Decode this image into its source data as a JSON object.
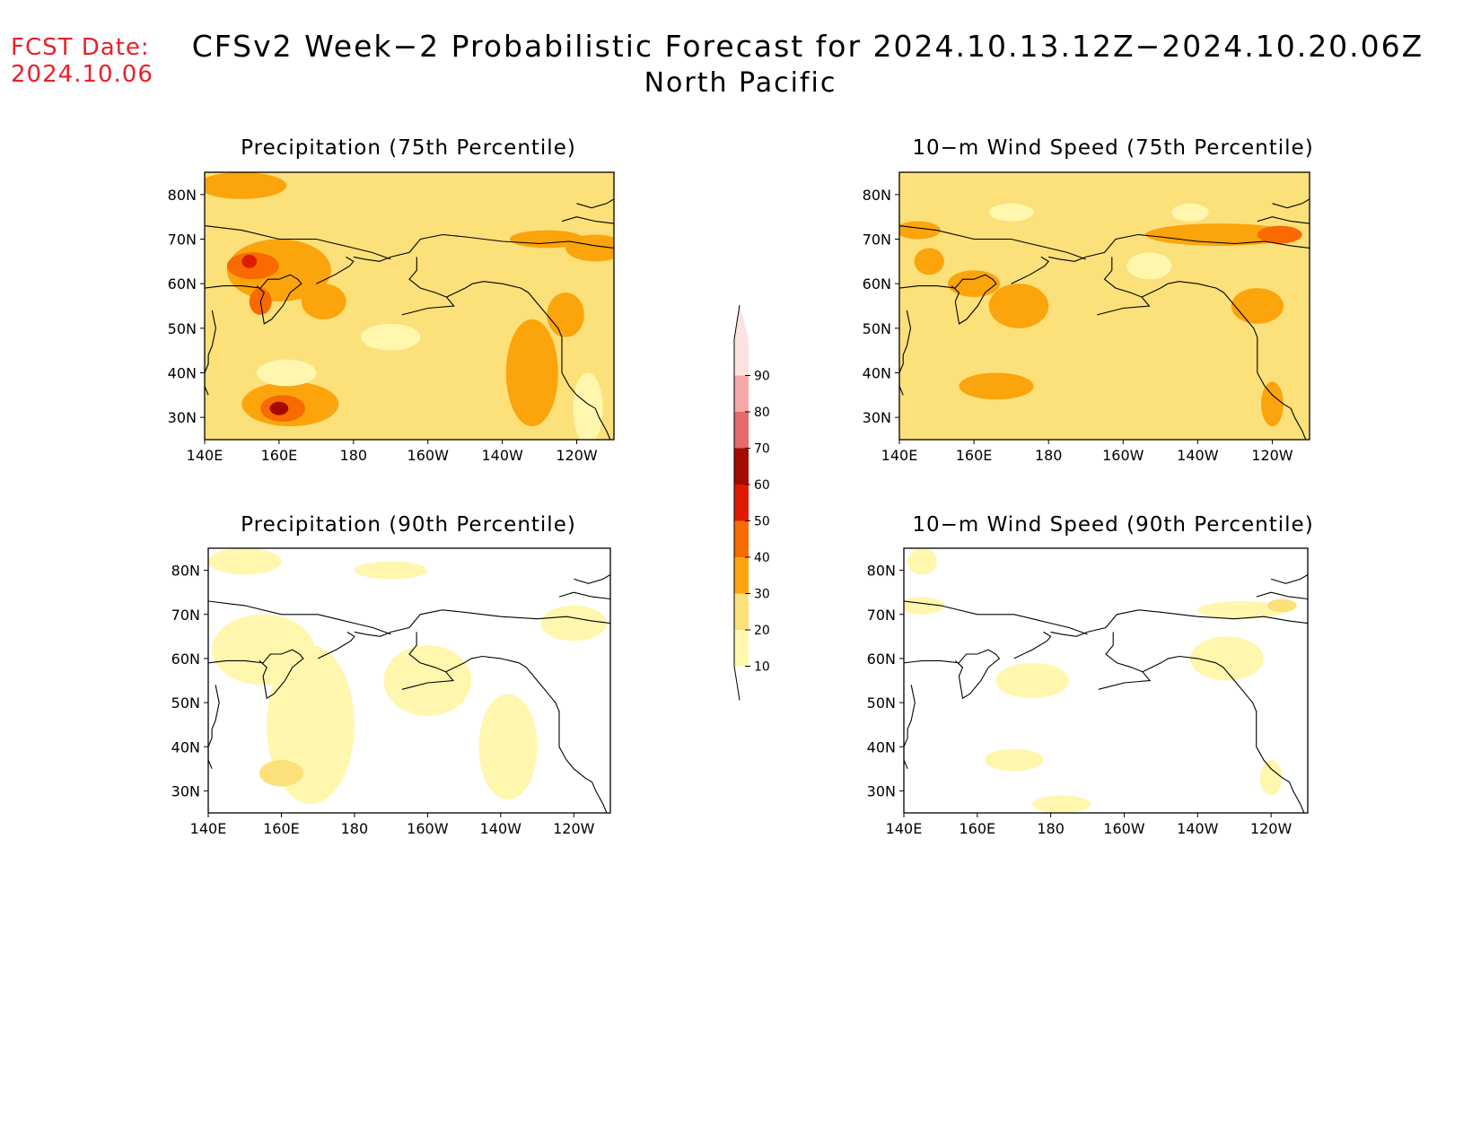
{
  "header": {
    "fcst_label": "FCST Date:",
    "fcst_date": "2024.10.06",
    "title": "CFSv2 Week−2 Probabilistic Forecast for 2024.10.13.12Z−2024.10.20.06Z",
    "subtitle": "North Pacific"
  },
  "colors": {
    "levels": [
      {
        "min": 10,
        "max": 20,
        "color": "#fff7ae"
      },
      {
        "min": 20,
        "max": 30,
        "color": "#fce07a"
      },
      {
        "min": 30,
        "max": 40,
        "color": "#fba40c"
      },
      {
        "min": 40,
        "max": 50,
        "color": "#f96a00"
      },
      {
        "min": 50,
        "max": 60,
        "color": "#e01a00"
      },
      {
        "min": 60,
        "max": 70,
        "color": "#a50a00"
      },
      {
        "min": 70,
        "max": 80,
        "color": "#e56a6a"
      },
      {
        "min": 80,
        "max": 90,
        "color": "#f5a8a8"
      },
      {
        "min": 90,
        "max": 100,
        "color": "#fde2e2"
      }
    ]
  },
  "colorbar": {
    "labels": [
      "10",
      "20",
      "30",
      "40",
      "50",
      "60",
      "70",
      "80",
      "90"
    ]
  },
  "panels": [
    {
      "id": "precip-75",
      "title": "Precipitation (75th Percentile)",
      "lat_labels": [
        "80N",
        "70N",
        "60N",
        "50N",
        "40N",
        "30N"
      ],
      "lon_labels": [
        "140E",
        "160E",
        "180",
        "160W",
        "140W",
        "120W"
      ],
      "background_level": 20,
      "blobs": [
        {
          "lon": 150,
          "lat": 82,
          "rx": 12,
          "ry": 3,
          "level": 30
        },
        {
          "lon": 160,
          "lat": 63,
          "rx": 14,
          "ry": 7,
          "level": 30
        },
        {
          "lon": 153,
          "lat": 64,
          "rx": 7,
          "ry": 3,
          "level": 40
        },
        {
          "lon": 152,
          "lat": 65,
          "rx": 2,
          "ry": 1.5,
          "level": 50
        },
        {
          "lon": 155,
          "lat": 56,
          "rx": 3,
          "ry": 3,
          "level": 40
        },
        {
          "lon": 172,
          "lat": 56,
          "rx": 6,
          "ry": 4,
          "level": 30
        },
        {
          "lon": 163,
          "lat": 33,
          "rx": 13,
          "ry": 5,
          "level": 30
        },
        {
          "lon": 161,
          "lat": 32,
          "rx": 6,
          "ry": 3,
          "level": 40
        },
        {
          "lon": 160,
          "lat": 32,
          "rx": 2.5,
          "ry": 1.5,
          "level": 60
        },
        {
          "lon": 228,
          "lat": 40,
          "rx": 7,
          "ry": 12,
          "level": 30
        },
        {
          "lon": 237,
          "lat": 53,
          "rx": 5,
          "ry": 5,
          "level": 30
        },
        {
          "lon": 245,
          "lat": 68,
          "rx": 8,
          "ry": 3,
          "level": 30
        },
        {
          "lon": 232,
          "lat": 70,
          "rx": 10,
          "ry": 2,
          "level": 30
        },
        {
          "lon": 190,
          "lat": 48,
          "rx": 8,
          "ry": 3,
          "level": 10
        },
        {
          "lon": 162,
          "lat": 40,
          "rx": 8,
          "ry": 3,
          "level": 10
        },
        {
          "lon": 243,
          "lat": 32,
          "rx": 4,
          "ry": 8,
          "level": 10
        }
      ]
    },
    {
      "id": "wind-75",
      "title": "10−m Wind Speed (75th Percentile)",
      "lat_labels": [
        "80N",
        "70N",
        "60N",
        "50N",
        "40N",
        "30N"
      ],
      "lon_labels": [
        "140E",
        "160E",
        "180",
        "160W",
        "140W",
        "120W"
      ],
      "background_level": 20,
      "blobs": [
        {
          "lon": 145,
          "lat": 72,
          "rx": 6,
          "ry": 2,
          "level": 30
        },
        {
          "lon": 148,
          "lat": 65,
          "rx": 4,
          "ry": 3,
          "level": 30
        },
        {
          "lon": 160,
          "lat": 60,
          "rx": 7,
          "ry": 3,
          "level": 30
        },
        {
          "lon": 172,
          "lat": 55,
          "rx": 8,
          "ry": 5,
          "level": 30
        },
        {
          "lon": 226,
          "lat": 71,
          "rx": 20,
          "ry": 2.5,
          "level": 30
        },
        {
          "lon": 242,
          "lat": 71,
          "rx": 6,
          "ry": 2,
          "level": 40
        },
        {
          "lon": 236,
          "lat": 55,
          "rx": 7,
          "ry": 4,
          "level": 30
        },
        {
          "lon": 240,
          "lat": 33,
          "rx": 3,
          "ry": 5,
          "level": 30
        },
        {
          "lon": 166,
          "lat": 37,
          "rx": 10,
          "ry": 3,
          "level": 30
        },
        {
          "lon": 218,
          "lat": 76,
          "rx": 5,
          "ry": 2,
          "level": 10
        },
        {
          "lon": 207,
          "lat": 64,
          "rx": 6,
          "ry": 3,
          "level": 10
        },
        {
          "lon": 170,
          "lat": 76,
          "rx": 6,
          "ry": 2,
          "level": 10
        }
      ]
    },
    {
      "id": "precip-90",
      "title": "Precipitation (90th Percentile)",
      "lat_labels": [
        "80N",
        "70N",
        "60N",
        "50N",
        "40N",
        "30N"
      ],
      "lon_labels": [
        "140E",
        "160E",
        "180",
        "160W",
        "140W",
        "120W"
      ],
      "background_level": 0,
      "blobs": [
        {
          "lon": 155,
          "lat": 62,
          "rx": 14,
          "ry": 8,
          "level": 10
        },
        {
          "lon": 168,
          "lat": 45,
          "rx": 12,
          "ry": 18,
          "level": 10
        },
        {
          "lon": 200,
          "lat": 55,
          "rx": 12,
          "ry": 8,
          "level": 10
        },
        {
          "lon": 222,
          "lat": 40,
          "rx": 8,
          "ry": 12,
          "level": 10
        },
        {
          "lon": 240,
          "lat": 68,
          "rx": 9,
          "ry": 4,
          "level": 10
        },
        {
          "lon": 160,
          "lat": 34,
          "rx": 6,
          "ry": 3,
          "level": 20
        },
        {
          "lon": 150,
          "lat": 82,
          "rx": 10,
          "ry": 3,
          "level": 10
        },
        {
          "lon": 190,
          "lat": 80,
          "rx": 10,
          "ry": 2,
          "level": 10
        }
      ]
    },
    {
      "id": "wind-90",
      "title": "10−m Wind Speed (90th Percentile)",
      "lat_labels": [
        "80N",
        "70N",
        "60N",
        "50N",
        "40N",
        "30N"
      ],
      "lon_labels": [
        "140E",
        "160E",
        "180",
        "160W",
        "140W",
        "120W"
      ],
      "background_level": 0,
      "blobs": [
        {
          "lon": 145,
          "lat": 72,
          "rx": 6,
          "ry": 2,
          "level": 10
        },
        {
          "lon": 145,
          "lat": 82,
          "rx": 4,
          "ry": 3,
          "level": 10
        },
        {
          "lon": 175,
          "lat": 55,
          "rx": 10,
          "ry": 4,
          "level": 10
        },
        {
          "lon": 228,
          "lat": 60,
          "rx": 10,
          "ry": 5,
          "level": 10
        },
        {
          "lon": 232,
          "lat": 71,
          "rx": 12,
          "ry": 2,
          "level": 10
        },
        {
          "lon": 243,
          "lat": 72,
          "rx": 4,
          "ry": 1.5,
          "level": 20
        },
        {
          "lon": 170,
          "lat": 37,
          "rx": 8,
          "ry": 2.5,
          "level": 10
        },
        {
          "lon": 183,
          "lat": 27,
          "rx": 8,
          "ry": 2,
          "level": 10
        },
        {
          "lon": 240,
          "lat": 33,
          "rx": 3,
          "ry": 4,
          "level": 10
        }
      ]
    }
  ]
}
